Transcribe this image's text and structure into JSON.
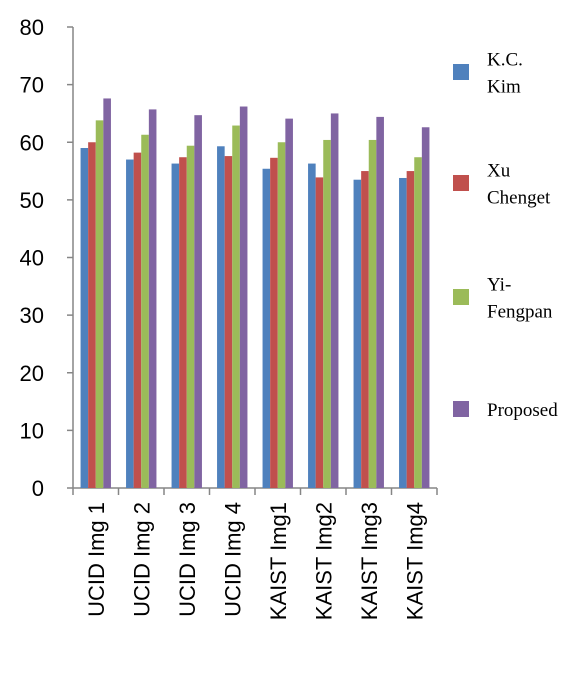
{
  "chart_data": {
    "type": "bar",
    "title": "",
    "xlabel": "",
    "ylabel": "",
    "ylim": [
      0,
      80
    ],
    "yticks": [
      0,
      10,
      20,
      30,
      40,
      50,
      60,
      70,
      80
    ],
    "grid": false,
    "legend_position": "right",
    "categories": [
      "UCID Img 1",
      "UCID Img 2",
      "UCID Img 3",
      "UCID Img 4",
      "KAIST Img1",
      "KAIST Img2",
      "KAIST Img3",
      "KAIST Img4"
    ],
    "series": [
      {
        "name": "K.C. Kim",
        "legend_lines": [
          "K.C.",
          "Kim"
        ],
        "color": "#4f81bd",
        "values": [
          59,
          57,
          56.3,
          59.3,
          55.4,
          56.3,
          53.5,
          53.8
        ]
      },
      {
        "name": "Xu Chenget",
        "legend_lines": [
          "Xu",
          "Chenget"
        ],
        "color": "#c0504d",
        "values": [
          60,
          58.2,
          57.4,
          57.6,
          57.3,
          53.9,
          55,
          55
        ]
      },
      {
        "name": "Yi-Fengpan",
        "legend_lines": [
          "Yi-",
          "Fengpan"
        ],
        "color": "#9bbb59",
        "values": [
          63.8,
          61.3,
          59.4,
          62.9,
          60,
          60.4,
          60.4,
          57.4
        ]
      },
      {
        "name": "Proposed",
        "legend_lines": [
          "Proposed"
        ],
        "color": "#8064a2",
        "values": [
          67.6,
          65.7,
          64.7,
          66.2,
          64.1,
          65,
          64.4,
          62.6
        ]
      }
    ]
  }
}
